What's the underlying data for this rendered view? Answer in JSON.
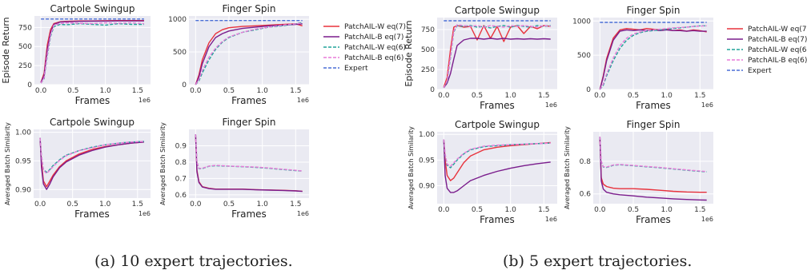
{
  "colors": {
    "PatchAIL-W eq(7)": "#e8323c",
    "PatchAIL-B eq(7)": "#7a1c8c",
    "PatchAIL-W eq(6)": "#20a39a",
    "PatchAIL-B eq(6)": "#e87ad8",
    "Expert": "#4a6fd6",
    "panel_bg": "#eaeaf2",
    "grid": "#ffffff"
  },
  "legend": {
    "placement": "right of each figure group",
    "entries": [
      "PatchAIL-W eq(7)",
      "PatchAIL-B eq(7)",
      "PatchAIL-W eq(6)",
      "PatchAIL-B eq(6)",
      "Expert"
    ]
  },
  "captions": {
    "a": "(a) 10 expert trajectories.",
    "b": "(b) 5 expert trajectories."
  },
  "chart_data": [
    {
      "id": "a-cartpole-return",
      "type": "line",
      "title": "Cartpole Swingup",
      "xlabel": "Frames",
      "ylabel": "Episode Return",
      "x_exponent": "1e6",
      "xlim": [
        -0.1,
        1.7
      ],
      "ylim": [
        0,
        900
      ],
      "xticks": [
        "0.0",
        "0.5",
        "1.0",
        "1.5"
      ],
      "yticks": [
        "0",
        "250",
        "500",
        "750"
      ],
      "x": [
        0,
        0.05,
        0.1,
        0.15,
        0.2,
        0.3,
        0.4,
        0.6,
        0.8,
        1.0,
        1.2,
        1.4,
        1.6
      ],
      "series": [
        {
          "name": "PatchAIL-W eq(7)",
          "style": "solid",
          "values": [
            30,
            150,
            520,
            720,
            800,
            825,
            830,
            835,
            835,
            838,
            840,
            840,
            840
          ]
        },
        {
          "name": "PatchAIL-B eq(7)",
          "style": "solid",
          "values": [
            30,
            120,
            460,
            680,
            790,
            820,
            825,
            830,
            832,
            833,
            835,
            835,
            835
          ]
        },
        {
          "name": "PatchAIL-W eq(6)",
          "style": "dashed",
          "values": [
            20,
            80,
            380,
            630,
            760,
            790,
            785,
            800,
            790,
            780,
            800,
            790,
            790
          ]
        },
        {
          "name": "PatchAIL-B eq(6)",
          "style": "dashed",
          "values": [
            20,
            90,
            400,
            650,
            780,
            800,
            810,
            805,
            800,
            810,
            805,
            810,
            800
          ]
        },
        {
          "name": "Expert",
          "style": "dashed",
          "values": [
            860,
            860,
            860,
            860,
            860,
            860,
            860,
            860,
            860,
            860,
            860,
            860,
            860
          ]
        }
      ]
    },
    {
      "id": "a-finger-return",
      "type": "line",
      "title": "Finger Spin",
      "xlabel": "Frames",
      "ylabel": "",
      "x_exponent": "1e6",
      "xlim": [
        -0.1,
        1.7
      ],
      "ylim": [
        0,
        1050
      ],
      "xticks": [
        "0.0",
        "0.5",
        "1.0",
        "1.5"
      ],
      "yticks": [
        "0",
        "500",
        "1000"
      ],
      "x": [
        0,
        0.05,
        0.1,
        0.2,
        0.3,
        0.4,
        0.5,
        0.7,
        0.9,
        1.1,
        1.3,
        1.5,
        1.6
      ],
      "series": [
        {
          "name": "PatchAIL-W eq(7)",
          "style": "solid",
          "values": [
            0,
            150,
            380,
            640,
            780,
            840,
            870,
            890,
            900,
            910,
            920,
            930,
            900
          ]
        },
        {
          "name": "PatchAIL-B eq(7)",
          "style": "solid",
          "values": [
            0,
            120,
            320,
            580,
            720,
            780,
            820,
            860,
            880,
            900,
            910,
            920,
            930
          ]
        },
        {
          "name": "PatchAIL-W eq(6)",
          "style": "dashed",
          "values": [
            0,
            60,
            180,
            380,
            540,
            650,
            720,
            800,
            840,
            880,
            900,
            930,
            950
          ]
        },
        {
          "name": "PatchAIL-B eq(6)",
          "style": "dashed",
          "values": [
            0,
            80,
            220,
            420,
            560,
            660,
            730,
            800,
            850,
            880,
            910,
            930,
            940
          ]
        },
        {
          "name": "Expert",
          "style": "dashed",
          "values": [
            980,
            980,
            980,
            980,
            980,
            980,
            980,
            980,
            980,
            980,
            980,
            980,
            980
          ]
        }
      ]
    },
    {
      "id": "a-cartpole-sim",
      "type": "line",
      "title": "Cartpole Swingup",
      "xlabel": "Frames",
      "ylabel": "Averaged Batch Similarity",
      "x_exponent": "1e6",
      "xlim": [
        -0.1,
        1.7
      ],
      "ylim": [
        0.885,
        1.005
      ],
      "xticks": [
        "0.0",
        "0.5",
        "1.0",
        "1.5"
      ],
      "yticks": [
        "0.90",
        "0.95",
        "1.00"
      ],
      "x": [
        0,
        0.02,
        0.05,
        0.1,
        0.15,
        0.2,
        0.3,
        0.4,
        0.6,
        0.8,
        1.0,
        1.2,
        1.4,
        1.6
      ],
      "series": [
        {
          "name": "PatchAIL-W eq(7)",
          "style": "solid",
          "values": [
            0.99,
            0.95,
            0.915,
            0.905,
            0.915,
            0.925,
            0.94,
            0.95,
            0.962,
            0.97,
            0.975,
            0.978,
            0.981,
            0.983
          ]
        },
        {
          "name": "PatchAIL-B eq(7)",
          "style": "solid",
          "values": [
            0.99,
            0.94,
            0.91,
            0.9,
            0.91,
            0.922,
            0.938,
            0.948,
            0.96,
            0.968,
            0.974,
            0.978,
            0.981,
            0.983
          ]
        },
        {
          "name": "PatchAIL-W eq(6)",
          "style": "dashed",
          "values": [
            0.99,
            0.96,
            0.935,
            0.93,
            0.935,
            0.942,
            0.952,
            0.96,
            0.968,
            0.974,
            0.978,
            0.981,
            0.983,
            0.984
          ]
        },
        {
          "name": "PatchAIL-B eq(6)",
          "style": "dashed",
          "values": [
            0.99,
            0.96,
            0.934,
            0.928,
            0.934,
            0.94,
            0.951,
            0.959,
            0.968,
            0.973,
            0.978,
            0.981,
            0.983,
            0.984
          ]
        }
      ]
    },
    {
      "id": "a-finger-sim",
      "type": "line",
      "title": "Finger Spin",
      "xlabel": "Frames",
      "ylabel": "Averaged Batch Similarity",
      "x_exponent": "1e6",
      "xlim": [
        -0.1,
        1.7
      ],
      "ylim": [
        0.58,
        1.0
      ],
      "xticks": [
        "0.0",
        "0.5",
        "1.0",
        "1.5"
      ],
      "yticks": [
        "0.6",
        "0.7",
        "0.8",
        "0.9"
      ],
      "x": [
        0,
        0.02,
        0.05,
        0.1,
        0.2,
        0.3,
        0.5,
        0.7,
        0.9,
        1.1,
        1.3,
        1.5,
        1.6
      ],
      "series": [
        {
          "name": "PatchAIL-W eq(7)",
          "style": "solid",
          "values": [
            0.97,
            0.75,
            0.68,
            0.65,
            0.64,
            0.635,
            0.635,
            0.635,
            0.632,
            0.63,
            0.628,
            0.625,
            0.622
          ]
        },
        {
          "name": "PatchAIL-B eq(7)",
          "style": "solid",
          "values": [
            0.97,
            0.74,
            0.675,
            0.648,
            0.638,
            0.634,
            0.634,
            0.634,
            0.631,
            0.629,
            0.627,
            0.624,
            0.621
          ]
        },
        {
          "name": "PatchAIL-W eq(6)",
          "style": "dashed",
          "values": [
            0.97,
            0.8,
            0.76,
            0.76,
            0.775,
            0.778,
            0.775,
            0.772,
            0.768,
            0.762,
            0.755,
            0.748,
            0.745
          ]
        },
        {
          "name": "PatchAIL-B eq(6)",
          "style": "dashed",
          "values": [
            0.97,
            0.8,
            0.762,
            0.762,
            0.776,
            0.78,
            0.776,
            0.773,
            0.77,
            0.764,
            0.757,
            0.75,
            0.746
          ]
        }
      ]
    },
    {
      "id": "b-cartpole-return",
      "type": "line",
      "title": "Cartpole Swingup",
      "xlabel": "Frames",
      "ylabel": "Episode Return",
      "x_exponent": "1e6",
      "xlim": [
        -0.1,
        1.7
      ],
      "ylim": [
        0,
        900
      ],
      "xticks": [
        "0.0",
        "0.5",
        "1.0",
        "1.5"
      ],
      "yticks": [
        "0",
        "250",
        "500",
        "750"
      ],
      "x": [
        0,
        0.05,
        0.1,
        0.15,
        0.2,
        0.3,
        0.4,
        0.5,
        0.6,
        0.7,
        0.8,
        0.9,
        1.0,
        1.1,
        1.2,
        1.3,
        1.4,
        1.5,
        1.6
      ],
      "series": [
        {
          "name": "PatchAIL-W eq(7)",
          "style": "solid",
          "values": [
            30,
            150,
            500,
            780,
            800,
            780,
            790,
            620,
            800,
            640,
            790,
            600,
            780,
            800,
            700,
            790,
            760,
            800,
            790
          ]
        },
        {
          "name": "PatchAIL-B eq(7)",
          "style": "solid",
          "values": [
            20,
            80,
            200,
            380,
            550,
            620,
            640,
            640,
            630,
            640,
            630,
            640,
            630,
            635,
            630,
            635,
            630,
            635,
            630
          ]
        },
        {
          "name": "PatchAIL-W eq(6)",
          "style": "dashed",
          "values": [
            20,
            100,
            400,
            720,
            800,
            790,
            800,
            780,
            790,
            770,
            790,
            800,
            780,
            800,
            790,
            780,
            800,
            790,
            800
          ]
        },
        {
          "name": "PatchAIL-B eq(6)",
          "style": "dashed",
          "values": [
            20,
            110,
            420,
            730,
            810,
            800,
            790,
            800,
            780,
            800,
            790,
            780,
            800,
            790,
            800,
            790,
            780,
            800,
            790
          ]
        },
        {
          "name": "Expert",
          "style": "dashed",
          "values": [
            860,
            860,
            860,
            860,
            860,
            860,
            860,
            860,
            860,
            860,
            860,
            860,
            860,
            860,
            860,
            860,
            860,
            860,
            860
          ]
        }
      ]
    },
    {
      "id": "b-finger-return",
      "type": "line",
      "title": "Finger Spin",
      "xlabel": "Frames",
      "ylabel": "",
      "x_exponent": "1e6",
      "xlim": [
        -0.1,
        1.7
      ],
      "ylim": [
        0,
        1050
      ],
      "xticks": [
        "0.0",
        "0.5",
        "1.0",
        "1.5"
      ],
      "yticks": [
        "0",
        "500",
        "1000"
      ],
      "x": [
        0,
        0.05,
        0.1,
        0.2,
        0.3,
        0.4,
        0.5,
        0.6,
        0.7,
        0.8,
        0.9,
        1.0,
        1.1,
        1.2,
        1.3,
        1.4,
        1.5,
        1.6
      ],
      "series": [
        {
          "name": "PatchAIL-W eq(7)",
          "style": "solid",
          "values": [
            0,
            200,
            450,
            750,
            870,
            890,
            880,
            870,
            890,
            880,
            870,
            880,
            860,
            870,
            850,
            870,
            860,
            840
          ]
        },
        {
          "name": "PatchAIL-B eq(7)",
          "style": "solid",
          "values": [
            0,
            180,
            420,
            720,
            850,
            870,
            860,
            870,
            860,
            870,
            860,
            870,
            860,
            860,
            850,
            860,
            850,
            850
          ]
        },
        {
          "name": "PatchAIL-W eq(6)",
          "style": "dashed",
          "values": [
            0,
            60,
            200,
            420,
            600,
            720,
            790,
            830,
            850,
            860,
            870,
            880,
            890,
            900,
            910,
            920,
            930,
            930
          ]
        },
        {
          "name": "PatchAIL-B eq(6)",
          "style": "dashed",
          "values": [
            0,
            80,
            230,
            460,
            640,
            750,
            810,
            840,
            860,
            870,
            880,
            890,
            900,
            905,
            910,
            920,
            925,
            930
          ]
        },
        {
          "name": "Expert",
          "style": "dashed",
          "values": [
            980,
            980,
            980,
            980,
            980,
            980,
            980,
            980,
            980,
            980,
            980,
            980,
            980,
            980,
            980,
            980,
            980,
            980
          ]
        }
      ]
    },
    {
      "id": "b-cartpole-sim",
      "type": "line",
      "title": "Cartpole Swingup",
      "xlabel": "Frames",
      "ylabel": "Averaged Batch Similarity",
      "x_exponent": "1e6",
      "xlim": [
        -0.1,
        1.7
      ],
      "ylim": [
        0.865,
        1.005
      ],
      "xticks": [
        "0.0",
        "0.5",
        "1.0",
        "1.5"
      ],
      "yticks": [
        "0.90",
        "0.95",
        "1.00"
      ],
      "x": [
        0,
        0.02,
        0.05,
        0.1,
        0.15,
        0.2,
        0.3,
        0.4,
        0.6,
        0.8,
        1.0,
        1.2,
        1.4,
        1.6
      ],
      "series": [
        {
          "name": "PatchAIL-W eq(7)",
          "style": "solid",
          "values": [
            0.99,
            0.95,
            0.92,
            0.91,
            0.915,
            0.925,
            0.945,
            0.958,
            0.97,
            0.975,
            0.978,
            0.98,
            0.982,
            0.984
          ]
        },
        {
          "name": "PatchAIL-B eq(7)",
          "style": "solid",
          "values": [
            0.99,
            0.92,
            0.895,
            0.887,
            0.887,
            0.89,
            0.9,
            0.91,
            0.92,
            0.928,
            0.934,
            0.939,
            0.943,
            0.946
          ]
        },
        {
          "name": "PatchAIL-W eq(6)",
          "style": "dashed",
          "values": [
            0.99,
            0.96,
            0.94,
            0.935,
            0.942,
            0.95,
            0.962,
            0.97,
            0.976,
            0.978,
            0.98,
            0.981,
            0.982,
            0.983
          ]
        },
        {
          "name": "PatchAIL-B eq(6)",
          "style": "dashed",
          "values": [
            0.99,
            0.962,
            0.942,
            0.938,
            0.945,
            0.952,
            0.963,
            0.971,
            0.977,
            0.979,
            0.98,
            0.981,
            0.982,
            0.983
          ]
        }
      ]
    },
    {
      "id": "b-finger-sim",
      "type": "line",
      "title": "Finger Spin",
      "xlabel": "Frames",
      "ylabel": "Averaged Batch Similarity",
      "x_exponent": "1e6",
      "xlim": [
        -0.1,
        1.7
      ],
      "ylim": [
        0.54,
        0.98
      ],
      "xticks": [
        "0.0",
        "0.5",
        "1.0",
        "1.5"
      ],
      "yticks": [
        "0.6",
        "0.8"
      ],
      "x": [
        0,
        0.02,
        0.05,
        0.1,
        0.2,
        0.3,
        0.5,
        0.7,
        0.9,
        1.1,
        1.3,
        1.5,
        1.6
      ],
      "series": [
        {
          "name": "PatchAIL-W eq(7)",
          "style": "solid",
          "values": [
            0.95,
            0.7,
            0.66,
            0.645,
            0.635,
            0.632,
            0.632,
            0.628,
            0.622,
            0.616,
            0.612,
            0.61,
            0.61
          ]
        },
        {
          "name": "PatchAIL-B eq(7)",
          "style": "solid",
          "values": [
            0.95,
            0.68,
            0.63,
            0.61,
            0.6,
            0.595,
            0.588,
            0.58,
            0.575,
            0.57,
            0.566,
            0.563,
            0.562
          ]
        },
        {
          "name": "PatchAIL-W eq(6)",
          "style": "dashed",
          "values": [
            0.95,
            0.8,
            0.765,
            0.762,
            0.775,
            0.778,
            0.772,
            0.766,
            0.76,
            0.752,
            0.745,
            0.738,
            0.735
          ]
        },
        {
          "name": "PatchAIL-B eq(6)",
          "style": "dashed",
          "values": [
            0.95,
            0.8,
            0.767,
            0.764,
            0.777,
            0.78,
            0.774,
            0.768,
            0.762,
            0.754,
            0.747,
            0.74,
            0.737
          ]
        }
      ]
    }
  ]
}
